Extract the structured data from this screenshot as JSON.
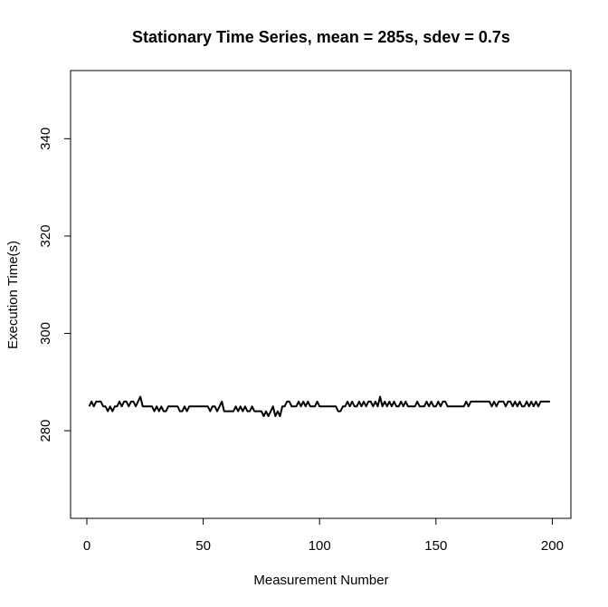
{
  "chart_data": {
    "type": "line",
    "title": "Stationary Time Series, mean = 285s, sdev = 0.7s",
    "xlabel": "Measurement Number",
    "ylabel": "Execution Time(s)",
    "xlim": [
      -7,
      208
    ],
    "ylim": [
      262,
      354
    ],
    "xticks": [
      0,
      50,
      100,
      150,
      200
    ],
    "yticks": [
      280,
      300,
      320,
      340
    ],
    "grid": false,
    "legend": "none",
    "line_color": "#000000",
    "x": [
      1,
      2,
      3,
      4,
      5,
      6,
      7,
      8,
      9,
      10,
      11,
      12,
      13,
      14,
      15,
      16,
      17,
      18,
      19,
      20,
      21,
      22,
      23,
      24,
      25,
      26,
      27,
      28,
      29,
      30,
      31,
      32,
      33,
      34,
      35,
      36,
      37,
      38,
      39,
      40,
      41,
      42,
      43,
      44,
      45,
      46,
      47,
      48,
      49,
      50,
      51,
      52,
      53,
      54,
      55,
      56,
      57,
      58,
      59,
      60,
      61,
      62,
      63,
      64,
      65,
      66,
      67,
      68,
      69,
      70,
      71,
      72,
      73,
      74,
      75,
      76,
      77,
      78,
      79,
      80,
      81,
      82,
      83,
      84,
      85,
      86,
      87,
      88,
      89,
      90,
      91,
      92,
      93,
      94,
      95,
      96,
      97,
      98,
      99,
      100,
      101,
      102,
      103,
      104,
      105,
      106,
      107,
      108,
      109,
      110,
      111,
      112,
      113,
      114,
      115,
      116,
      117,
      118,
      119,
      120,
      121,
      122,
      123,
      124,
      125,
      126,
      127,
      128,
      129,
      130,
      131,
      132,
      133,
      134,
      135,
      136,
      137,
      138,
      139,
      140,
      141,
      142,
      143,
      144,
      145,
      146,
      147,
      148,
      149,
      150,
      151,
      152,
      153,
      154,
      155,
      156,
      157,
      158,
      159,
      160,
      161,
      162,
      163,
      164,
      165,
      166,
      167,
      168,
      169,
      170,
      171,
      172,
      173,
      174,
      175,
      176,
      177,
      178,
      179,
      180,
      181,
      182,
      183,
      184,
      185,
      186,
      187,
      188,
      189,
      190,
      191,
      192,
      193,
      194,
      195,
      196,
      197,
      198,
      199
    ],
    "y": [
      285,
      286,
      285,
      286,
      286,
      286,
      285,
      285,
      284,
      285,
      284,
      285,
      285,
      286,
      285,
      286,
      286,
      285,
      286,
      286,
      285,
      286,
      287,
      285,
      285,
      285,
      285,
      285,
      284,
      285,
      284,
      285,
      284,
      284,
      285,
      285,
      285,
      285,
      285,
      284,
      284,
      285,
      284,
      285,
      285,
      285,
      285,
      285,
      285,
      285,
      285,
      285,
      284,
      285,
      285,
      284,
      285,
      286,
      284,
      284,
      284,
      284,
      284,
      285,
      284,
      285,
      284,
      285,
      284,
      284,
      285,
      284,
      284,
      284,
      284,
      283,
      284,
      283,
      284,
      285,
      283,
      284,
      283,
      285,
      285,
      286,
      286,
      285,
      285,
      285,
      286,
      285,
      286,
      285,
      286,
      285,
      285,
      285,
      286,
      285,
      285,
      285,
      285,
      285,
      285,
      285,
      285,
      284,
      284,
      285,
      285,
      286,
      285,
      286,
      285,
      285,
      286,
      285,
      286,
      285,
      286,
      286,
      285,
      286,
      285,
      287,
      285,
      286,
      285,
      286,
      285,
      286,
      285,
      285,
      286,
      285,
      286,
      285,
      285,
      285,
      285,
      286,
      285,
      285,
      285,
      286,
      285,
      286,
      285,
      285,
      286,
      285,
      286,
      286,
      285,
      285,
      285,
      285,
      285,
      285,
      285,
      285,
      286,
      285,
      286,
      286,
      286,
      286,
      286,
      286,
      286,
      286,
      286,
      285,
      286,
      285,
      286,
      286,
      286,
      285,
      286,
      286,
      285,
      286,
      285,
      286,
      285,
      285,
      286,
      285,
      286,
      285,
      286,
      285,
      286,
      286,
      286,
      286,
      286
    ]
  }
}
